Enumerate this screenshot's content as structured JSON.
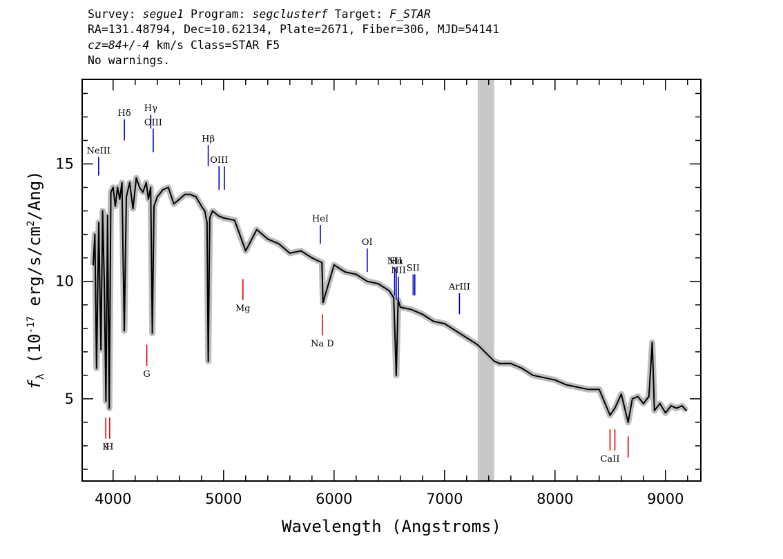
{
  "header": {
    "survey_label": "Survey:",
    "survey": "segue1",
    "program_label": "Program:",
    "program": "segclusterf",
    "target_label": "Target:",
    "target": "F_STAR",
    "line2": "RA=131.48794, Dec=10.62134, Plate=2671, Fiber=306, MJD=54141",
    "cz": "cz=84+/-4",
    "cz_rest": "km/s Class=STAR F5",
    "line4": "No warnings."
  },
  "colors": {
    "spectrum": "#000000",
    "error_band": "#bdbdbd",
    "masked_region": "#c8c8c8",
    "emission_marker": "#0000cc",
    "absorption_marker": "#dd0000",
    "axes": "#000000"
  },
  "chart_data": {
    "type": "line",
    "xlabel": "Wavelength (Angstroms)",
    "ylabel": "f_λ (10^-17 erg/s/cm^2/Ang)",
    "xlim": [
      3720,
      9320
    ],
    "ylim": [
      1.5,
      18.6
    ],
    "xticks": [
      4000,
      5000,
      6000,
      7000,
      8000,
      9000
    ],
    "yticks": [
      5,
      10,
      15
    ],
    "grid": false,
    "masked_region": [
      7300,
      7450
    ],
    "spectrum": {
      "name": "flux",
      "x": [
        3820,
        3835,
        3850,
        3870,
        3890,
        3905,
        3920,
        3935,
        3950,
        3965,
        3980,
        4000,
        4020,
        4040,
        4060,
        4080,
        4101,
        4120,
        4150,
        4180,
        4210,
        4240,
        4270,
        4300,
        4320,
        4340,
        4355,
        4370,
        4400,
        4450,
        4500,
        4550,
        4600,
        4650,
        4700,
        4750,
        4800,
        4830,
        4850,
        4861,
        4875,
        4900,
        4950,
        5000,
        5100,
        5200,
        5300,
        5400,
        5500,
        5600,
        5700,
        5800,
        5890,
        5900,
        6000,
        6100,
        6200,
        6300,
        6400,
        6500,
        6540,
        6563,
        6580,
        6600,
        6700,
        6800,
        6900,
        7000,
        7100,
        7200,
        7300,
        7450,
        7500,
        7600,
        7700,
        7800,
        7900,
        8000,
        8100,
        8200,
        8300,
        8400,
        8498,
        8542,
        8600,
        8662,
        8700,
        8750,
        8800,
        8850,
        8880,
        8900,
        8950,
        9000,
        9050,
        9100,
        9150,
        9190
      ],
      "y": [
        10.7,
        12.0,
        6.3,
        12.5,
        7.1,
        13.0,
        10.0,
        4.9,
        12.8,
        4.6,
        13.8,
        14.0,
        13.2,
        14.0,
        13.5,
        14.2,
        7.9,
        13.6,
        14.2,
        13.1,
        14.4,
        14.0,
        13.8,
        14.2,
        13.5,
        14.0,
        7.8,
        13.2,
        13.6,
        13.9,
        14.0,
        13.3,
        13.5,
        13.7,
        13.7,
        13.6,
        13.2,
        13.0,
        12.5,
        6.6,
        12.7,
        13.0,
        12.8,
        12.7,
        12.6,
        11.3,
        12.2,
        11.8,
        11.6,
        11.2,
        11.3,
        11.0,
        10.8,
        9.1,
        10.7,
        10.4,
        10.3,
        10.0,
        9.9,
        9.6,
        9.3,
        6.0,
        9.2,
        8.9,
        8.8,
        8.6,
        8.3,
        8.2,
        7.9,
        7.6,
        7.3,
        6.6,
        6.5,
        6.5,
        6.3,
        6.0,
        5.9,
        5.8,
        5.6,
        5.5,
        5.4,
        5.4,
        4.3,
        4.6,
        5.2,
        4.0,
        5.0,
        5.1,
        4.8,
        5.1,
        7.4,
        4.5,
        4.8,
        4.4,
        4.7,
        4.6,
        4.7,
        4.5
      ]
    },
    "emission_lines": [
      {
        "label": "NeIII",
        "x": 3869,
        "y0": 14.5,
        "y1": 15.3
      },
      {
        "label": "Hδ",
        "x": 4102,
        "y0": 16.0,
        "y1": 16.9
      },
      {
        "label": "Hγ",
        "x": 4341,
        "y0": 16.5,
        "y1": 17.1
      },
      {
        "label": "OIII",
        "x": 4363,
        "y0": 15.5,
        "y1": 16.5
      },
      {
        "label": "Hβ",
        "x": 4861,
        "y0": 14.9,
        "y1": 15.8
      },
      {
        "label": "OIII",
        "x": 4959,
        "y0": 13.9,
        "y1": 14.9
      },
      {
        "label": "",
        "x": 5007,
        "y0": 13.9,
        "y1": 14.9
      },
      {
        "label": "HeI",
        "x": 5876,
        "y0": 11.6,
        "y1": 12.4
      },
      {
        "label": "OI",
        "x": 6300,
        "y0": 10.4,
        "y1": 11.4
      },
      {
        "label": "NII",
        "x": 6548,
        "y0": 9.4,
        "y1": 10.6
      },
      {
        "label": "Hα",
        "x": 6563,
        "y0": 9.2,
        "y1": 10.6
      },
      {
        "label": "NII",
        "x": 6583,
        "y0": 9.2,
        "y1": 10.2
      },
      {
        "label": "SII",
        "x": 6716,
        "y0": 9.4,
        "y1": 10.3
      },
      {
        "label": "",
        "x": 6731,
        "y0": 9.4,
        "y1": 10.3
      },
      {
        "label": "ArIII",
        "x": 7135,
        "y0": 8.6,
        "y1": 9.5
      }
    ],
    "absorption_lines": [
      {
        "label": "K",
        "x": 3934,
        "y0": 3.3,
        "y1": 4.2
      },
      {
        "label": "H",
        "x": 3969,
        "y0": 3.3,
        "y1": 4.2
      },
      {
        "label": "G",
        "x": 4305,
        "y0": 6.4,
        "y1": 7.3
      },
      {
        "label": "Mg",
        "x": 5175,
        "y0": 9.2,
        "y1": 10.1
      },
      {
        "label": "Na D",
        "x": 5894,
        "y0": 7.7,
        "y1": 8.6
      },
      {
        "label": "CaII",
        "x": 8498,
        "y0": 2.8,
        "y1": 3.7
      },
      {
        "label": "",
        "x": 8542,
        "y0": 2.8,
        "y1": 3.7
      },
      {
        "label": "",
        "x": 8662,
        "y0": 2.5,
        "y1": 3.4
      }
    ]
  }
}
